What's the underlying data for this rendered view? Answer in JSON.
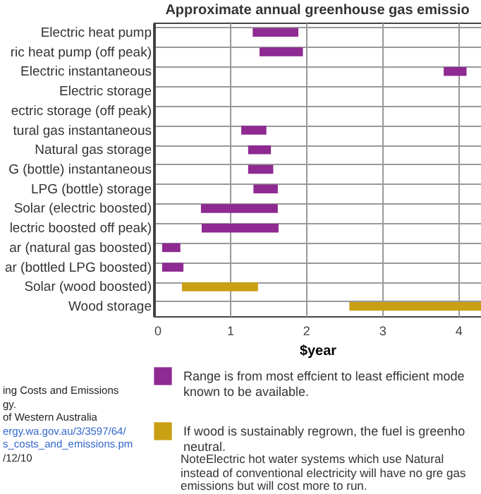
{
  "chart_data": {
    "type": "bar",
    "orientation": "horizontal",
    "title": "Approximate annual greenhouse gas emissio",
    "xlabel": "$year",
    "categories": [
      "Electric heat pump",
      "ric heat pump (off peak)",
      "Electric instantaneous",
      "Electric storage",
      "ectric storage (off peak)",
      "tural gas instantaneous",
      "Natural gas storage",
      "G (bottle) instantaneous",
      "LPG (bottle) storage",
      "Solar (electric boosted)",
      "lectric boosted off peak)",
      "ar (natural gas boosted)",
      "ar (bottled LPG boosted)",
      "Solar (wood boosted)",
      "Wood storage"
    ],
    "series": [
      {
        "name": "Range is from most effcient to least efficient mode known to be available.",
        "color": "#8e2a91",
        "base": [
          1.3,
          1.39,
          3.81,
          null,
          null,
          1.15,
          1.24,
          1.24,
          1.31,
          0.62,
          0.63,
          0.11,
          0.11,
          null,
          null
        ],
        "values": [
          0.6,
          0.57,
          0.3,
          null,
          null,
          0.33,
          0.3,
          0.33,
          0.32,
          1.01,
          1.01,
          0.24,
          0.28,
          null,
          null
        ]
      },
      {
        "name": "If wood is sustainably regrown, the fuel is greenho neutral.",
        "color": "#c9a014",
        "base": [
          null,
          null,
          null,
          null,
          null,
          null,
          null,
          null,
          null,
          null,
          null,
          null,
          null,
          0.37,
          2.57
        ],
        "values": [
          null,
          null,
          null,
          null,
          null,
          null,
          null,
          null,
          null,
          null,
          null,
          null,
          null,
          1.0,
          1.73
        ]
      }
    ],
    "xlim": [
      0,
      4.3
    ],
    "xticks": [
      0,
      1,
      2,
      3,
      4
    ],
    "grid": true,
    "legend": "bottom",
    "annotations": [
      "ing Costs and Emissions",
      "gy.",
      "of Western Australia",
      "ergy.wa.gov.au/3/3597/64/",
      "s_costs_and_emissions.pm",
      "/12/10",
      "NoteElectric hot water systems which use Natural instead of conventional electricity will have no gre gas emissions but will cost more to run."
    ]
  }
}
